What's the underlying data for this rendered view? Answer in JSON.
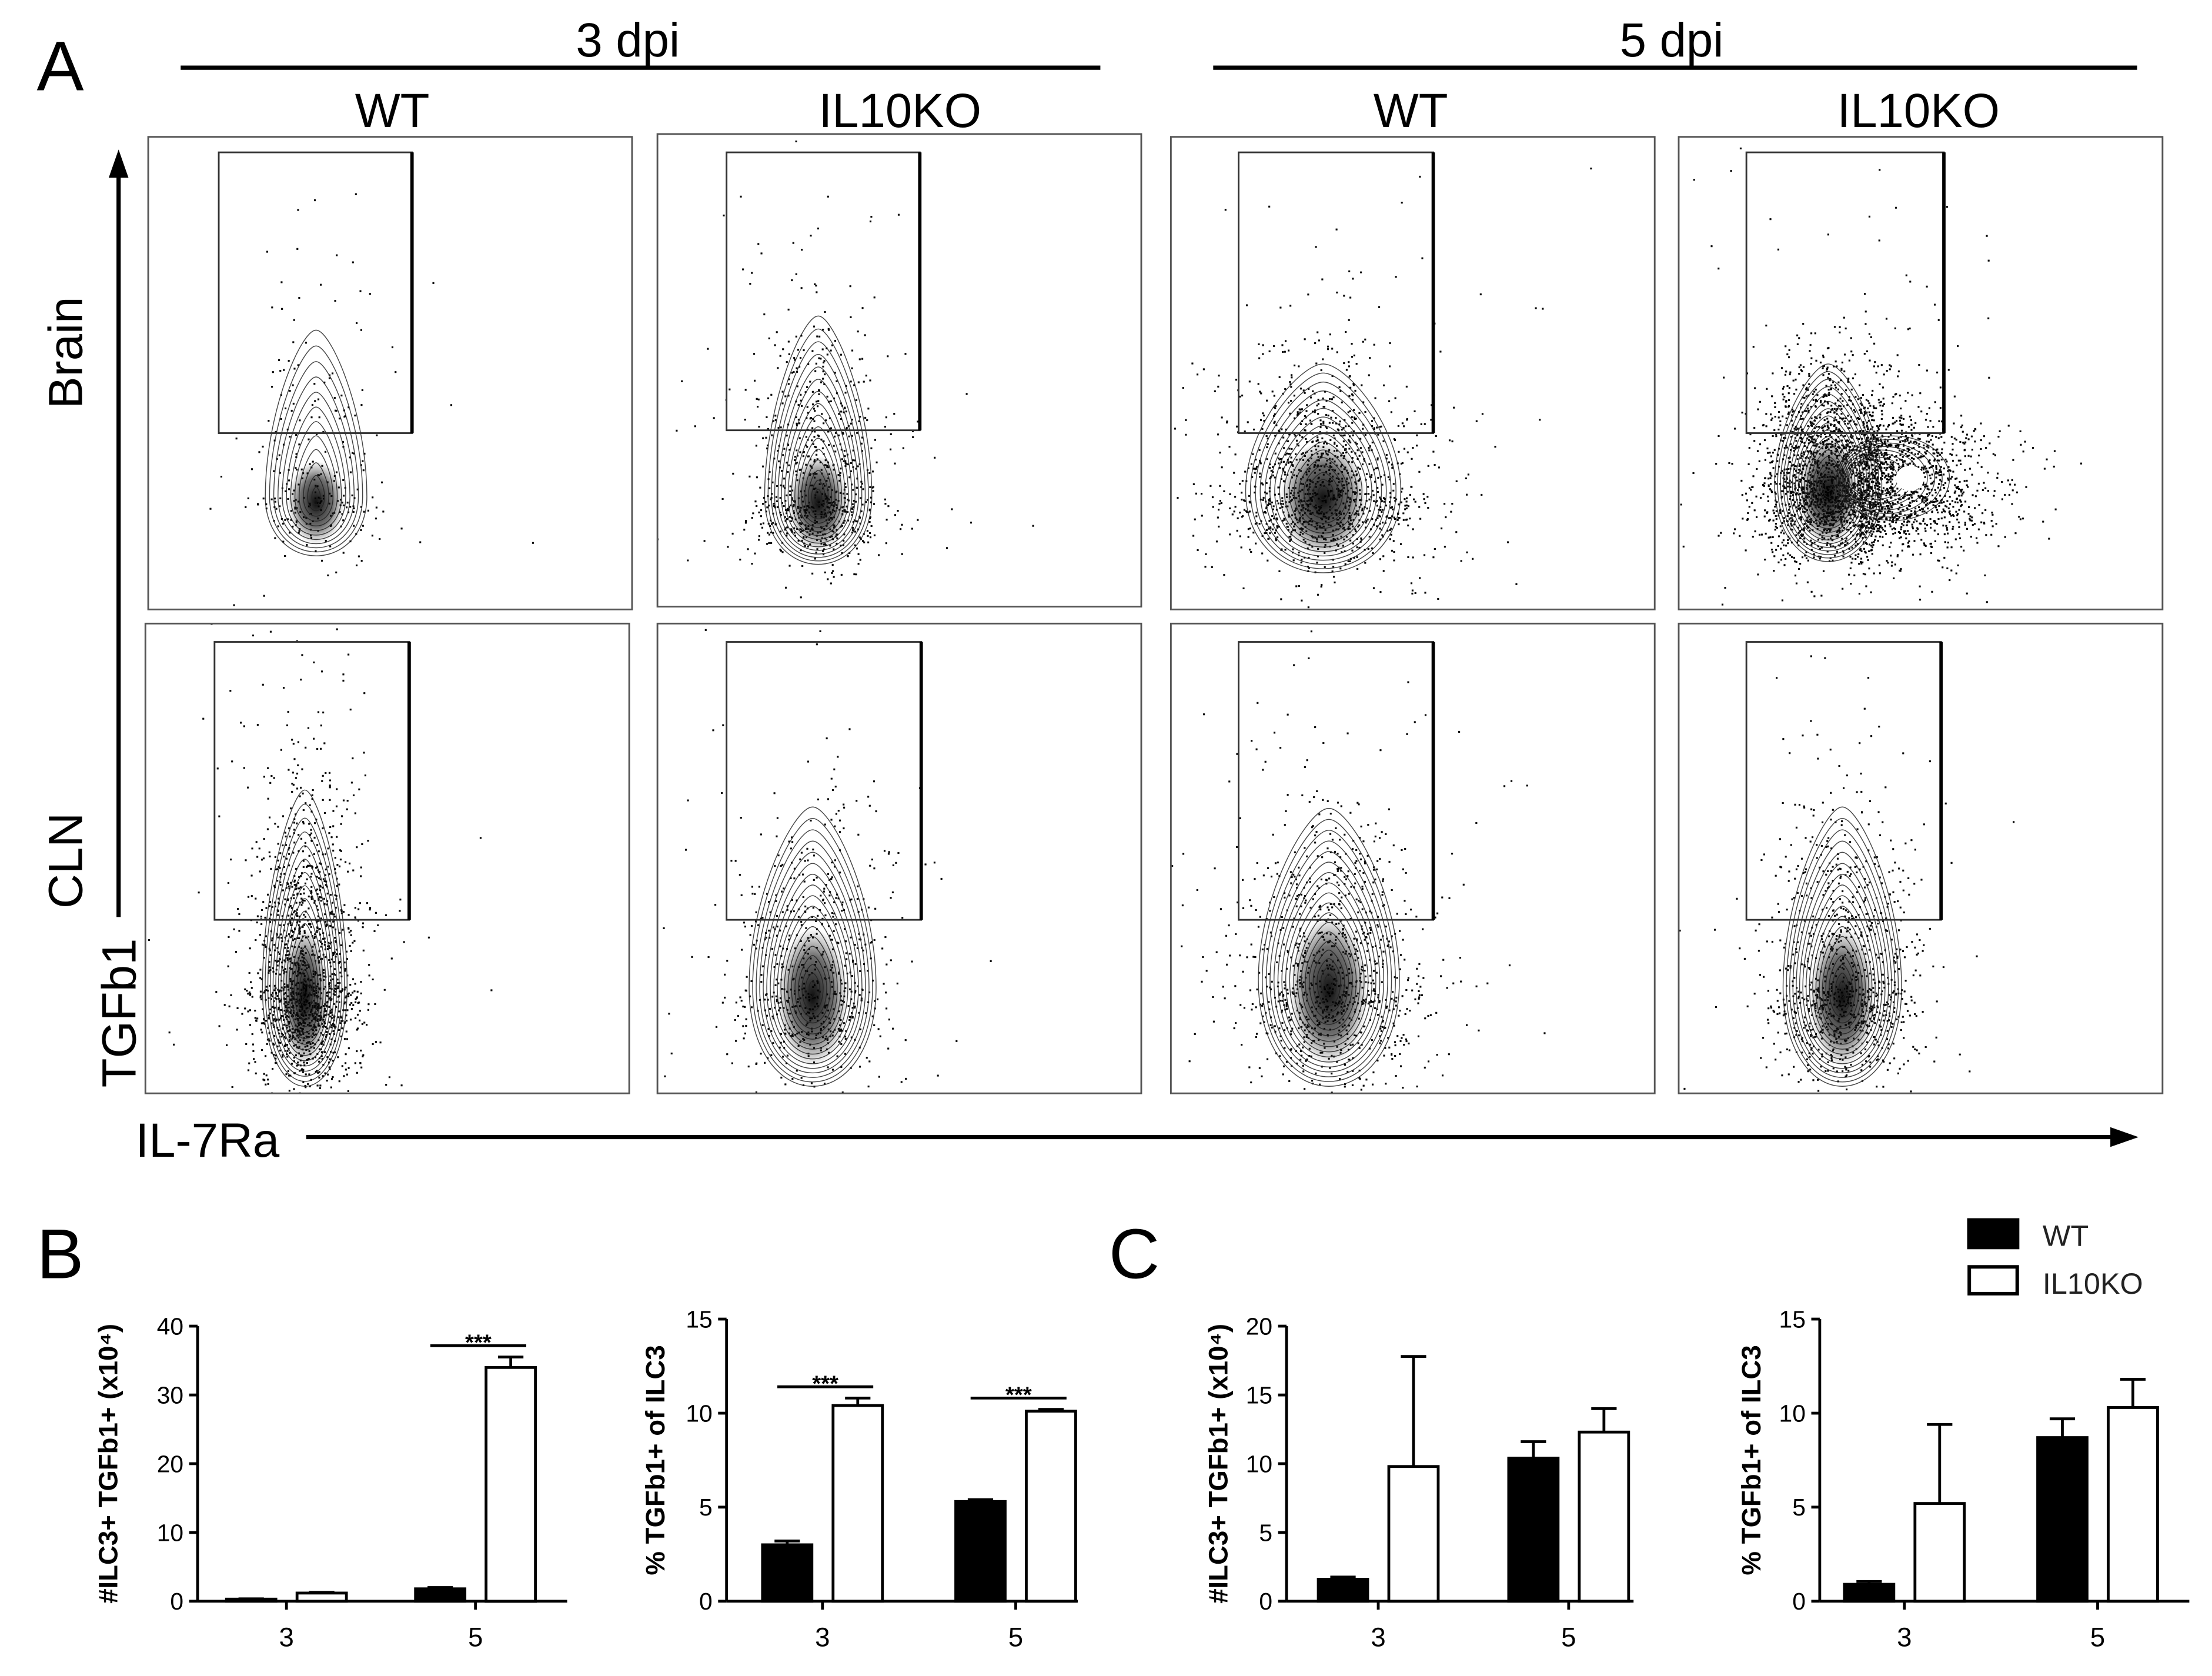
{
  "figure": {
    "panel_a": {
      "label": "A",
      "timepoints": [
        "3 dpi",
        "5 dpi"
      ],
      "column_headers": [
        "WT",
        "IL10KO",
        "WT",
        "IL10KO"
      ],
      "row_labels": [
        "Brain",
        "CLN"
      ],
      "y_axis_marker": "TGFb1",
      "x_axis_marker": "IL-7Ra"
    },
    "panel_b": {
      "label": "B"
    },
    "panel_c": {
      "label": "C"
    },
    "legend": [
      {
        "name": "WT",
        "color": "#000000"
      },
      {
        "name": "IL10KO",
        "color": "#ffffff"
      }
    ]
  },
  "chart_data": [
    {
      "type": "bar",
      "title": "",
      "xlabel": "",
      "ylabel": "#ILC3+ TGFb1+ (x10⁴)",
      "ylim": [
        0,
        40
      ],
      "yticks": [
        0,
        10,
        20,
        30,
        40
      ],
      "categories": [
        "3",
        "5"
      ],
      "series": [
        {
          "name": "WT",
          "color": "#000000",
          "values": [
            0.3,
            1.8
          ],
          "errors": [
            0.05,
            0.2
          ]
        },
        {
          "name": "IL10KO",
          "color": "#ffffff",
          "values": [
            1.2,
            34.0
          ],
          "errors": [
            0.1,
            1.5
          ]
        }
      ],
      "significance": [
        {
          "category": "5",
          "label": "***"
        }
      ]
    },
    {
      "type": "bar",
      "title": "",
      "xlabel": "",
      "ylabel": "% TGFb1+ of ILC3",
      "ylim": [
        0,
        15
      ],
      "yticks": [
        0,
        5,
        10,
        15
      ],
      "categories": [
        "3",
        "5"
      ],
      "series": [
        {
          "name": "WT",
          "color": "#000000",
          "values": [
            3.0,
            5.3
          ],
          "errors": [
            0.2,
            0.1
          ]
        },
        {
          "name": "IL10KO",
          "color": "#ffffff",
          "values": [
            10.4,
            10.1
          ],
          "errors": [
            0.4,
            0.1
          ]
        }
      ],
      "significance": [
        {
          "category": "3",
          "label": "***"
        },
        {
          "category": "5",
          "label": "***"
        }
      ]
    },
    {
      "type": "bar",
      "title": "",
      "xlabel": "",
      "ylabel": "#ILC3+ TGFb1+ (x10⁴)",
      "ylim": [
        0,
        20
      ],
      "yticks": [
        0,
        5,
        10,
        15,
        20
      ],
      "categories": [
        "3",
        "5"
      ],
      "series": [
        {
          "name": "WT",
          "color": "#000000",
          "values": [
            1.6,
            10.4
          ],
          "errors": [
            0.15,
            1.2
          ]
        },
        {
          "name": "IL10KO",
          "color": "#ffffff",
          "values": [
            9.8,
            12.3
          ],
          "errors": [
            8.0,
            1.7
          ]
        }
      ],
      "significance": []
    },
    {
      "type": "bar",
      "title": "",
      "xlabel": "",
      "ylabel": "% TGFb1+ of ILC3",
      "ylim": [
        0,
        15
      ],
      "yticks": [
        0,
        5,
        10,
        15
      ],
      "categories": [
        "3",
        "5"
      ],
      "series": [
        {
          "name": "WT",
          "color": "#000000",
          "values": [
            0.9,
            8.7
          ],
          "errors": [
            0.15,
            1.0
          ]
        },
        {
          "name": "IL10KO",
          "color": "#ffffff",
          "values": [
            5.2,
            10.3
          ],
          "errors": [
            4.2,
            1.5
          ]
        }
      ],
      "significance": []
    }
  ]
}
